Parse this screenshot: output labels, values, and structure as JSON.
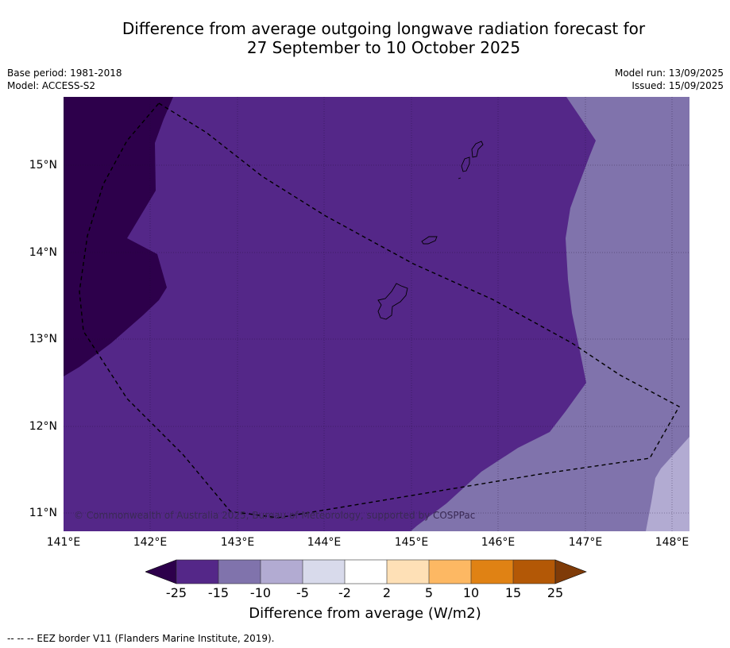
{
  "title_line1": "Difference from average outgoing longwave radiation forecast for",
  "title_line2": "27 September to 10 October 2025",
  "base_period": "Base period: 1981-2018",
  "model": "Model: ACCESS-S2",
  "model_run": "Model run: 13/09/2025",
  "issued": "Issued: 15/09/2025",
  "copyright": "© Commonwealth of Australia 2025, Bureau of Meteorology, supported by COSPPac",
  "footer": "-- -- -- EEZ border V11 (Flanders Marine Institute, 2019).",
  "lat_ticks": [
    "15°N",
    "14°N",
    "13°N",
    "12°N",
    "11°N"
  ],
  "lon_ticks": [
    "141°E",
    "142°E",
    "143°E",
    "144°E",
    "145°E",
    "146°E",
    "147°E",
    "148°E"
  ],
  "colorbar": {
    "title": "Difference from average (W/m2)",
    "tick_labels": [
      "-25",
      "-15",
      "-10",
      "-5",
      "-2",
      "2",
      "5",
      "10",
      "15",
      "25"
    ],
    "colors": [
      "#2d004b",
      "#542788",
      "#8073ac",
      "#b2abd2",
      "#d8daeb",
      "#ffffff",
      "#fee0b6",
      "#fdb863",
      "#e08214",
      "#b35806",
      "#7f3b08"
    ]
  },
  "map_colors": {
    "below_minus_25": "#2d004b",
    "minus_25_to_minus_15": "#542788",
    "minus_15_to_minus_10": "#8073ac",
    "minus_10_to_minus_5": "#b2abd2"
  }
}
